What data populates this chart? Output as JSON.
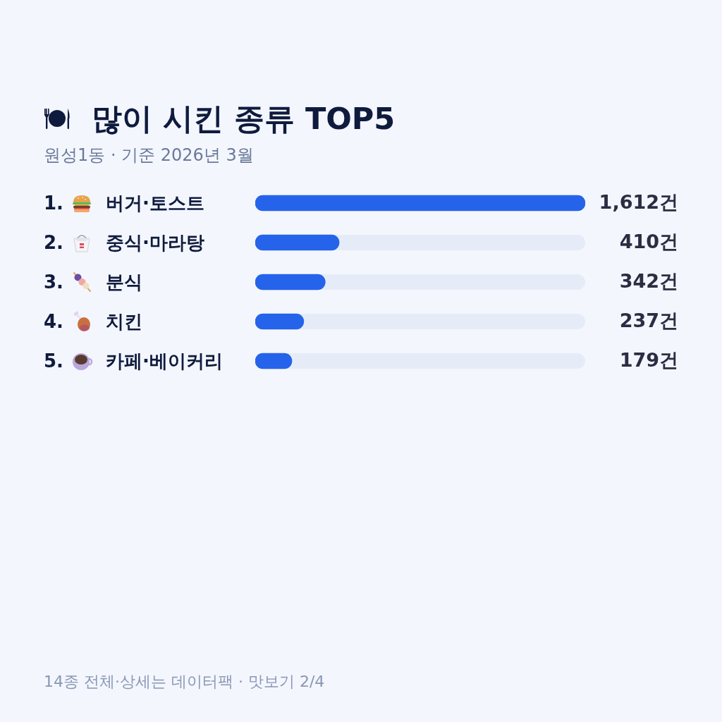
{
  "chart_data": {
    "type": "bar",
    "orientation": "horizontal",
    "title": "많이 시킨 종류 TOP5",
    "subtitle": "원성1동 · 기준 2026년 3월",
    "categories": [
      "1. 버거·토스트",
      "2. 중식·마라탕",
      "3. 분식",
      "4. 치킨",
      "5. 카페·베이커리"
    ],
    "values": [
      1612,
      410,
      342,
      237,
      179
    ],
    "value_labels": [
      "1,612건",
      "410건",
      "342건",
      "237건",
      "179건"
    ],
    "color": "#2563eb",
    "xlim": [
      0,
      1612
    ],
    "tick_labels": "y",
    "annotations": [
      "14종 전체·상세는 데이터팩 · 맛보기 2/4"
    ]
  }
}
